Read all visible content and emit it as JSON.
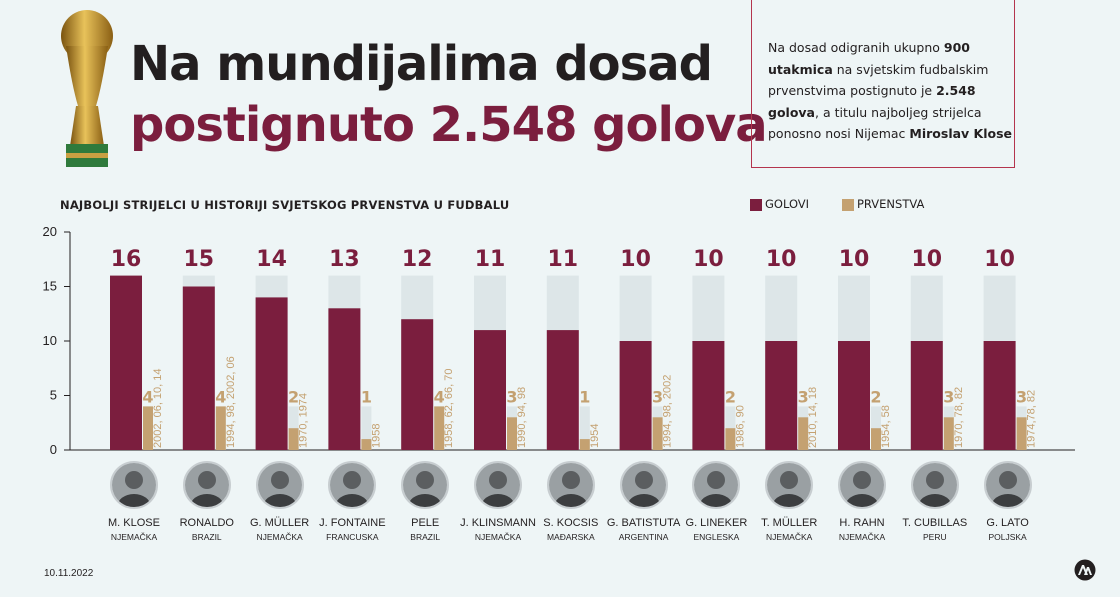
{
  "header": {
    "title_line1": "Na mundijalima dosad",
    "title_line2": "postignuto 2.548 golova"
  },
  "info": {
    "t1": "Na dosad odigranih ukupno ",
    "b1": "900 utakmica",
    "t2": " na svjetskim fudbalskim prvenstvima postignuto je ",
    "b2": "2.548 golova",
    "t3": ", a titulu najboljeg strijelca ponosno nosi Nijemac ",
    "b3": "Miroslav Klose"
  },
  "legend": {
    "goals": "GOLOVI",
    "championships": "PRVENSTVA"
  },
  "colors": {
    "goals": "#7b1e3e",
    "championships": "#c4a171",
    "track": "#dde6e8",
    "title_dark": "#231f20"
  },
  "footer": {
    "date": "10.11.2022"
  },
  "chart_data": {
    "type": "bar",
    "title": "NAJBOLJI STRIJELCI U HISTORIJI SVJETSKOG PRVENSTVA U FUDBALU",
    "ylim": [
      0,
      20
    ],
    "yticks": [
      0,
      5,
      10,
      15,
      20
    ],
    "series_names": [
      "GOLOVI",
      "PRVENSTVA"
    ],
    "players": [
      {
        "name": "M. KLOSE",
        "country": "NJEMAČKA",
        "goals": 16,
        "championships": 4,
        "years": "2002, 06, 10, 14"
      },
      {
        "name": "RONALDO",
        "country": "BRAZIL",
        "goals": 15,
        "championships": 4,
        "years": "1994, 98, 2002, 06"
      },
      {
        "name": "G. MÜLLER",
        "country": "NJEMAČKA",
        "goals": 14,
        "championships": 2,
        "years": "1970, 1974"
      },
      {
        "name": "J. FONTAINE",
        "country": "FRANCUSKA",
        "goals": 13,
        "championships": 1,
        "years": "1958"
      },
      {
        "name": "PELE",
        "country": "BRAZIL",
        "goals": 12,
        "championships": 4,
        "years": "1958, 62, 66, 70"
      },
      {
        "name": "J. KLINSMANN",
        "country": "NJEMAČKA",
        "goals": 11,
        "championships": 3,
        "years": "1990, 94, 98"
      },
      {
        "name": "S. KOCSIS",
        "country": "MAĐARSKA",
        "goals": 11,
        "championships": 1,
        "years": "1954"
      },
      {
        "name": "G. BATISTUTA",
        "country": "ARGENTINA",
        "goals": 10,
        "championships": 3,
        "years": "1994, 98, 2002"
      },
      {
        "name": "G. LINEKER",
        "country": "ENGLESKA",
        "goals": 10,
        "championships": 2,
        "years": "1986, 90"
      },
      {
        "name": "T. MÜLLER",
        "country": "NJEMAČKA",
        "goals": 10,
        "championships": 3,
        "years": "2010, 14, 18"
      },
      {
        "name": "H. RAHN",
        "country": "NJEMAČKA",
        "goals": 10,
        "championships": 2,
        "years": "1954, 58"
      },
      {
        "name": "T. CUBILLAS",
        "country": "PERU",
        "goals": 10,
        "championships": 3,
        "years": "1970, 78, 82"
      },
      {
        "name": "G. LATO",
        "country": "POLJSKA",
        "goals": 10,
        "championships": 3,
        "years": "1974,78, 82"
      }
    ]
  }
}
